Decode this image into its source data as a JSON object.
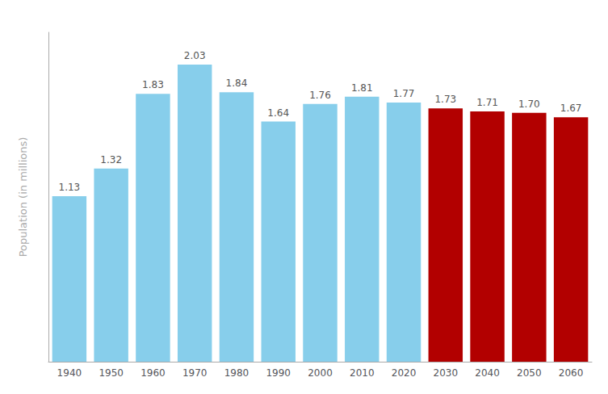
{
  "chart_data": {
    "type": "bar",
    "categories": [
      "1940",
      "1950",
      "1960",
      "1970",
      "1980",
      "1990",
      "2000",
      "2010",
      "2020",
      "2030",
      "2040",
      "2050",
      "2060"
    ],
    "values": [
      1.13,
      1.32,
      1.83,
      2.03,
      1.84,
      1.64,
      1.76,
      1.81,
      1.77,
      1.73,
      1.71,
      1.7,
      1.67
    ],
    "value_labels": [
      "1.13",
      "1.32",
      "1.83",
      "2.03",
      "1.84",
      "1.64",
      "1.76",
      "1.81",
      "1.77",
      "1.73",
      "1.71",
      "1.70",
      "1.67"
    ],
    "colors": [
      "#87CEEB",
      "#87CEEB",
      "#87CEEB",
      "#87CEEB",
      "#87CEEB",
      "#87CEEB",
      "#87CEEB",
      "#87CEEB",
      "#87CEEB",
      "#B20000",
      "#B20000",
      "#B20000",
      "#B20000"
    ],
    "ylabel": "Population (in millions)",
    "ylim": [
      0,
      2.25
    ],
    "grid": false,
    "data_labels": true,
    "tick_labels": "x"
  }
}
